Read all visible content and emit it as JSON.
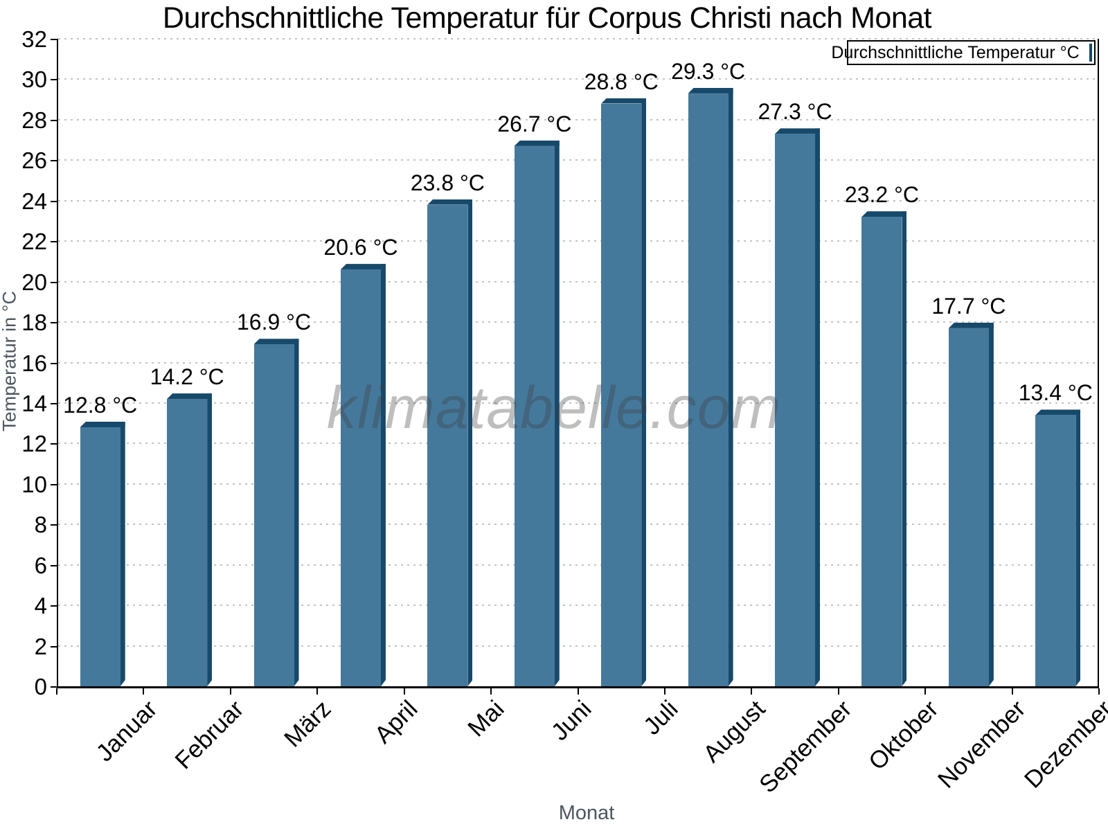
{
  "figure": {
    "title": "Durchschnittliche Temperatur für Corpus Christi nach Monat",
    "watermark": "klimatabelle.com"
  },
  "legend": {
    "label": "Durchschnittliche Temperatur °C"
  },
  "chart_data": {
    "type": "bar",
    "title": "Durchschnittliche Temperatur für Corpus Christi nach Monat",
    "categories": [
      "Januar",
      "Februar",
      "März",
      "April",
      "Mai",
      "Juni",
      "Juli",
      "August",
      "September",
      "Oktober",
      "November",
      "Dezember"
    ],
    "values": [
      12.8,
      14.2,
      16.9,
      20.6,
      23.8,
      26.7,
      28.8,
      29.3,
      27.3,
      23.2,
      17.7,
      13.4
    ],
    "value_labels": [
      "12.8 °C",
      "14.2 °C",
      "16.9 °C",
      "20.6 °C",
      "23.8 °C",
      "26.7 °C",
      "28.8 °C",
      "29.3 °C",
      "27.3 °C",
      "23.2 °C",
      "17.7 °C",
      "13.4 °C"
    ],
    "series_name": "Durchschnittliche Temperatur °C",
    "xlabel": "Monat",
    "ylabel": "Temperatur in °C",
    "ylim": [
      0,
      32
    ],
    "ytick_step": 2,
    "grid": "horizontal dotted",
    "legend_position": "top-right",
    "watermark": "klimatabelle.com",
    "colors": {
      "bar_front": "#45799C",
      "bar_side": "#17496A",
      "grid": "#c2c2c2",
      "axis": "#000000",
      "axis_label": "#4d5660",
      "watermark": "#3c3c3c"
    }
  }
}
